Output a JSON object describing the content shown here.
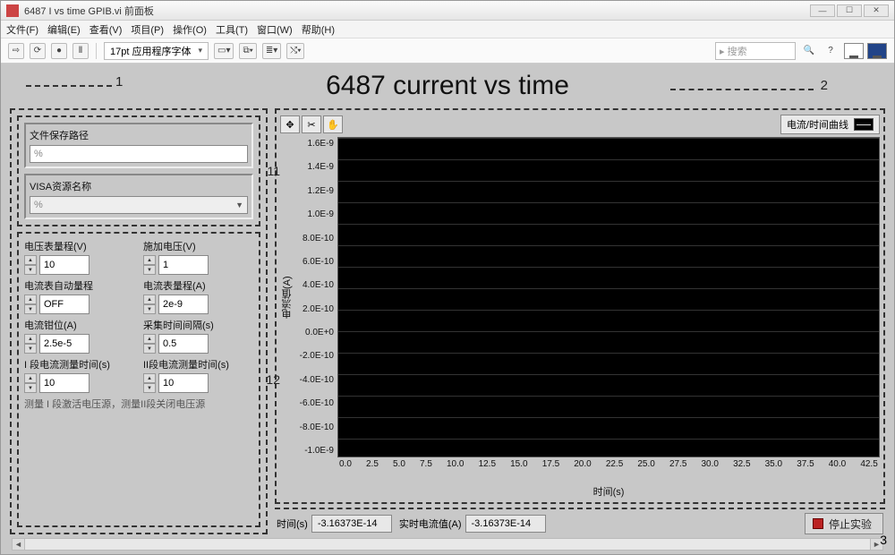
{
  "window": {
    "title": "6487 I vs time GPIB.vi 前面板",
    "min": "—",
    "max": "☐",
    "close": "✕"
  },
  "menu": {
    "file": "文件(F)",
    "edit": "编辑(E)",
    "view": "查看(V)",
    "project": "项目(P)",
    "operate": "操作(O)",
    "tools": "工具(T)",
    "window": "窗口(W)",
    "help": "帮助(H)"
  },
  "toolbar": {
    "run": "⇨",
    "run_cont": "⟳",
    "abort": "●",
    "pause": "Ⅱ",
    "font_box": "17pt 应用程序字体",
    "drop": "▾",
    "align1": "▭▾",
    "align2": "⧉▾",
    "align3": "≣▾",
    "align4": "⤭▾",
    "search_placeholder": "▸ 搜索",
    "q": "?",
    "help_icon": "ℹ"
  },
  "banner": "6487 current vs time",
  "callouts": {
    "one": "1",
    "two": "2",
    "three": "3",
    "p11": "11",
    "p12": "12"
  },
  "panel1": {
    "path_label": "文件保存路径",
    "path_value": "%",
    "visa_label": "VISA资源名称",
    "visa_value": "%"
  },
  "panel2": {
    "f1_label": "电压表量程(V)",
    "f1_value": "10",
    "f2_label": "施加电压(V)",
    "f2_value": "1",
    "f3_label": "电流表自动量程",
    "f3_value": "OFF",
    "f4_label": "电流表量程(A)",
    "f4_value": "2e-9",
    "f5_label": "电流钳位(A)",
    "f5_value": "2.5e-5",
    "f6_label": "采集时间间隔(s)",
    "f6_value": "0.5",
    "f7_label": "I 段电流测量时间(s)",
    "f7_value": "10",
    "f8_label": "II段电流测量时间(s)",
    "f8_value": "10",
    "note": "测量 I 段激活电压源，测量II段关闭电压源"
  },
  "chart": {
    "legend_label": "电流/时间曲线",
    "y_axis_label": "电流值(A)",
    "x_axis_label": "时间(s)",
    "y_ticks": [
      "1.6E-9",
      "1.4E-9",
      "1.2E-9",
      "1.0E-9",
      "8.0E-10",
      "6.0E-10",
      "4.0E-10",
      "2.0E-10",
      "0.0E+0",
      "-2.0E-10",
      "-4.0E-10",
      "-6.0E-10",
      "-8.0E-10",
      "-1.0E-9"
    ],
    "x_ticks": [
      "0.0",
      "2.5",
      "5.0",
      "7.5",
      "10.0",
      "12.5",
      "15.0",
      "17.5",
      "20.0",
      "22.5",
      "25.0",
      "27.5",
      "30.0",
      "32.5",
      "35.0",
      "37.5",
      "40.0",
      "42.5"
    ],
    "background_color": "#000000",
    "grid_color": "#333333",
    "ylim": [
      -1e-09,
      1.6e-09
    ],
    "xlim": [
      0.0,
      42.5
    ],
    "type": "line"
  },
  "status": {
    "time_label": "时间(s)",
    "time_value": "-3.16373E-14",
    "current_label": "实时电流值(A)",
    "current_value": "-3.16373E-14",
    "stop_label": "停止实验"
  }
}
